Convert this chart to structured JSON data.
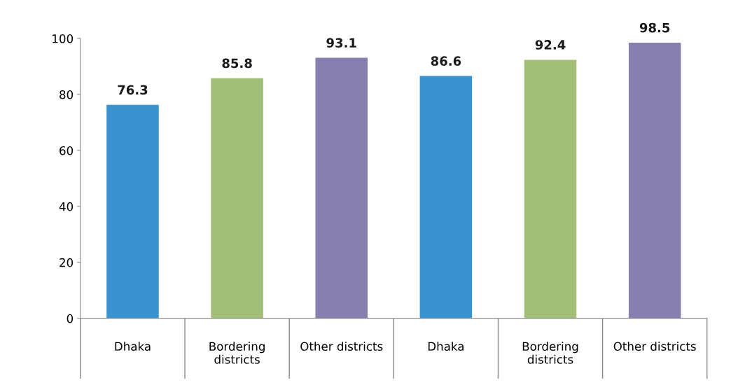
{
  "chart_data": {
    "type": "bar",
    "categories": [
      "Dhaka",
      "Bordering\ndistricts",
      "Other districts",
      "Dhaka",
      "Bordering\ndistricts",
      "Other districts"
    ],
    "values": [
      76.3,
      85.8,
      93.1,
      86.6,
      92.4,
      98.5
    ],
    "colors": [
      "#3a93cf",
      "#a3bf77",
      "#877fb0",
      "#3a93cf",
      "#a3bf77",
      "#877fb0"
    ],
    "ylim": [
      0,
      100
    ],
    "yticks": [
      0,
      20,
      40,
      60,
      80,
      100
    ],
    "grid": false,
    "data_labels": true
  }
}
